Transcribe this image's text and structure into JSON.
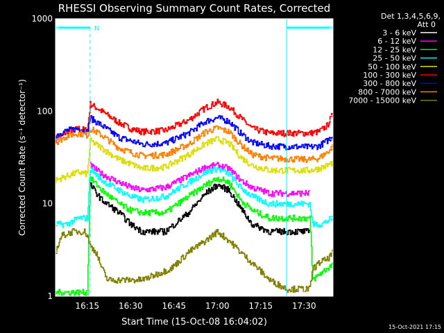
{
  "chart_data": {
    "type": "line",
    "title": "RHESSI Observing Summary Count Rates, Corrected",
    "xlabel": "Start Time (15-Oct-08 16:04:02)",
    "ylabel": "Corrected Count Rate (s⁻¹ detector⁻¹)",
    "yscale": "log",
    "ylim": [
      1,
      1000
    ],
    "xlim_min": [
      0,
      96
    ],
    "x_ticks": [
      {
        "min": 11,
        "label": "16:15"
      },
      {
        "min": 26,
        "label": "16:30"
      },
      {
        "min": 41,
        "label": "16:45"
      },
      {
        "min": 56,
        "label": "17:00"
      },
      {
        "min": 71,
        "label": "17:15"
      },
      {
        "min": 86,
        "label": "17:30"
      }
    ],
    "y_ticks": [
      {
        "v": 1,
        "label": "1"
      },
      {
        "v": 10,
        "label": "10"
      },
      {
        "v": 100,
        "label": "100"
      },
      {
        "v": 1000,
        "label": "1000"
      }
    ],
    "legend": {
      "placement": "right",
      "header": [
        "Det 1,3,4,5,6,9,",
        "Att 0"
      ],
      "entries": [
        {
          "label": "3 - 6 keV",
          "color": "#000000"
        },
        {
          "label": "6 - 12 keV",
          "color": "#ff00ff"
        },
        {
          "label": "12 - 25 keV",
          "color": "#00ff00"
        },
        {
          "label": "25 - 50 keV",
          "color": "#00ffff"
        },
        {
          "label": "50 - 100 keV",
          "color": "#dddd00"
        },
        {
          "label": "100 - 300 keV",
          "color": "#ff0000"
        },
        {
          "label": "300 - 800 keV",
          "color": "#0000ff"
        },
        {
          "label": "800 - 7000 keV",
          "color": "#ff8000"
        },
        {
          "label": "7000 - 15000 keV",
          "color": "#808000"
        }
      ]
    },
    "series": [
      {
        "color": "#ff0000",
        "points": [
          [
            0,
            50
          ],
          [
            4,
            60
          ],
          [
            8,
            65
          ],
          [
            11,
            62
          ],
          [
            12,
            120
          ],
          [
            16,
            100
          ],
          [
            22,
            75
          ],
          [
            26,
            65
          ],
          [
            30,
            60
          ],
          [
            38,
            62
          ],
          [
            46,
            80
          ],
          [
            52,
            110
          ],
          [
            56,
            125
          ],
          [
            60,
            112
          ],
          [
            64,
            85
          ],
          [
            68,
            65
          ],
          [
            74,
            58
          ],
          [
            88,
            58
          ],
          [
            91,
            60
          ],
          [
            94,
            70
          ],
          [
            96,
            95
          ]
        ]
      },
      {
        "color": "#0000ff",
        "points": [
          [
            0,
            55
          ],
          [
            4,
            62
          ],
          [
            8,
            65
          ],
          [
            11,
            60
          ],
          [
            12,
            85
          ],
          [
            16,
            70
          ],
          [
            22,
            52
          ],
          [
            26,
            48
          ],
          [
            30,
            44
          ],
          [
            38,
            45
          ],
          [
            46,
            58
          ],
          [
            52,
            78
          ],
          [
            56,
            85
          ],
          [
            60,
            78
          ],
          [
            64,
            58
          ],
          [
            68,
            46
          ],
          [
            74,
            42
          ],
          [
            88,
            41
          ],
          [
            91,
            42
          ],
          [
            94,
            48
          ],
          [
            96,
            55
          ]
        ]
      },
      {
        "color": "#ff8000",
        "points": [
          [
            0,
            46
          ],
          [
            4,
            54
          ],
          [
            8,
            58
          ],
          [
            11,
            55
          ],
          [
            12,
            65
          ],
          [
            16,
            55
          ],
          [
            22,
            40
          ],
          [
            26,
            36
          ],
          [
            30,
            33
          ],
          [
            38,
            34
          ],
          [
            46,
            44
          ],
          [
            52,
            60
          ],
          [
            56,
            66
          ],
          [
            60,
            60
          ],
          [
            64,
            44
          ],
          [
            68,
            34
          ],
          [
            74,
            31
          ],
          [
            88,
            30
          ],
          [
            91,
            31
          ],
          [
            94,
            36
          ],
          [
            96,
            42
          ]
        ]
      },
      {
        "color": "#dddd00",
        "points": [
          [
            0,
            18
          ],
          [
            4,
            20
          ],
          [
            8,
            22
          ],
          [
            11,
            21
          ],
          [
            12,
            48
          ],
          [
            16,
            40
          ],
          [
            22,
            30
          ],
          [
            26,
            27
          ],
          [
            30,
            24
          ],
          [
            38,
            25
          ],
          [
            46,
            34
          ],
          [
            52,
            45
          ],
          [
            56,
            50
          ],
          [
            60,
            45
          ],
          [
            64,
            32
          ],
          [
            68,
            26
          ],
          [
            74,
            23
          ],
          [
            88,
            23
          ],
          [
            91,
            24
          ],
          [
            94,
            26
          ],
          [
            96,
            28
          ]
        ]
      },
      {
        "color": "#ff00ff",
        "points": [
          [
            12,
            26
          ],
          [
            16,
            21
          ],
          [
            22,
            17
          ],
          [
            26,
            15
          ],
          [
            30,
            14
          ],
          [
            38,
            15
          ],
          [
            46,
            20
          ],
          [
            52,
            25
          ],
          [
            56,
            26
          ],
          [
            60,
            24
          ],
          [
            64,
            18
          ],
          [
            68,
            15
          ],
          [
            74,
            13
          ],
          [
            88,
            13
          ]
        ]
      },
      {
        "color": "#00ffff",
        "points": [
          [
            0,
            6
          ],
          [
            4,
            6
          ],
          [
            8,
            7
          ],
          [
            11,
            7
          ],
          [
            12,
            24
          ],
          [
            16,
            18
          ],
          [
            22,
            14
          ],
          [
            26,
            12
          ],
          [
            30,
            11
          ],
          [
            38,
            12
          ],
          [
            46,
            17
          ],
          [
            52,
            22
          ],
          [
            56,
            24
          ],
          [
            60,
            21
          ],
          [
            64,
            15
          ],
          [
            68,
            12
          ],
          [
            74,
            10
          ],
          [
            86,
            10
          ],
          [
            88,
            10
          ],
          [
            89,
            6
          ],
          [
            92,
            6
          ],
          [
            94,
            6.5
          ],
          [
            96,
            7
          ]
        ]
      },
      {
        "color": "#00ff00",
        "points": [
          [
            0,
            1.1
          ],
          [
            11,
            1.1
          ],
          [
            12,
            19
          ],
          [
            16,
            14
          ],
          [
            22,
            10
          ],
          [
            26,
            8.5
          ],
          [
            30,
            8
          ],
          [
            38,
            8
          ],
          [
            46,
            12
          ],
          [
            52,
            16
          ],
          [
            56,
            19
          ],
          [
            60,
            17
          ],
          [
            64,
            11
          ],
          [
            68,
            8.5
          ],
          [
            74,
            7
          ],
          [
            88,
            7
          ],
          [
            89,
            1.5
          ],
          [
            92,
            1.8
          ],
          [
            94,
            2
          ],
          [
            96,
            2.2
          ]
        ]
      },
      {
        "color": "#000000",
        "points": [
          [
            12,
            16
          ],
          [
            16,
            11
          ],
          [
            22,
            8
          ],
          [
            26,
            6
          ],
          [
            30,
            5
          ],
          [
            38,
            5
          ],
          [
            46,
            8
          ],
          [
            52,
            13
          ],
          [
            56,
            16
          ],
          [
            60,
            14
          ],
          [
            64,
            9
          ],
          [
            68,
            6
          ],
          [
            74,
            5
          ],
          [
            88,
            5
          ]
        ]
      },
      {
        "color": "#808000",
        "points": [
          [
            0,
            3
          ],
          [
            2,
            4.5
          ],
          [
            6,
            5
          ],
          [
            10,
            5
          ],
          [
            11,
            4.5
          ],
          [
            12,
            3.5
          ],
          [
            14,
            3
          ],
          [
            16,
            2
          ],
          [
            18,
            1.5
          ],
          [
            30,
            1.5
          ],
          [
            40,
            2
          ],
          [
            46,
            3
          ],
          [
            52,
            4
          ],
          [
            56,
            5
          ],
          [
            60,
            4
          ],
          [
            64,
            3
          ],
          [
            70,
            2
          ],
          [
            74,
            1.5
          ],
          [
            80,
            1.2
          ],
          [
            88,
            1.2
          ],
          [
            89,
            2
          ],
          [
            92,
            2.4
          ],
          [
            94,
            2.5
          ],
          [
            96,
            3
          ]
        ]
      }
    ],
    "state_markers": [
      {
        "color": "#00ffff",
        "label": "N",
        "x_from": 0,
        "x_to": 12,
        "value": 800,
        "dashed_x": 12
      },
      {
        "color": "#00ffff",
        "label": "",
        "x_from": 80,
        "x_to": 96,
        "value": 800,
        "dashed_x": 96
      },
      {
        "color": "#00ffff",
        "label": "",
        "x_from": 80,
        "x_to": 80,
        "value": 1000,
        "solid_x": 80
      }
    ],
    "footer_date": "15-Oct-2021 17:15"
  }
}
